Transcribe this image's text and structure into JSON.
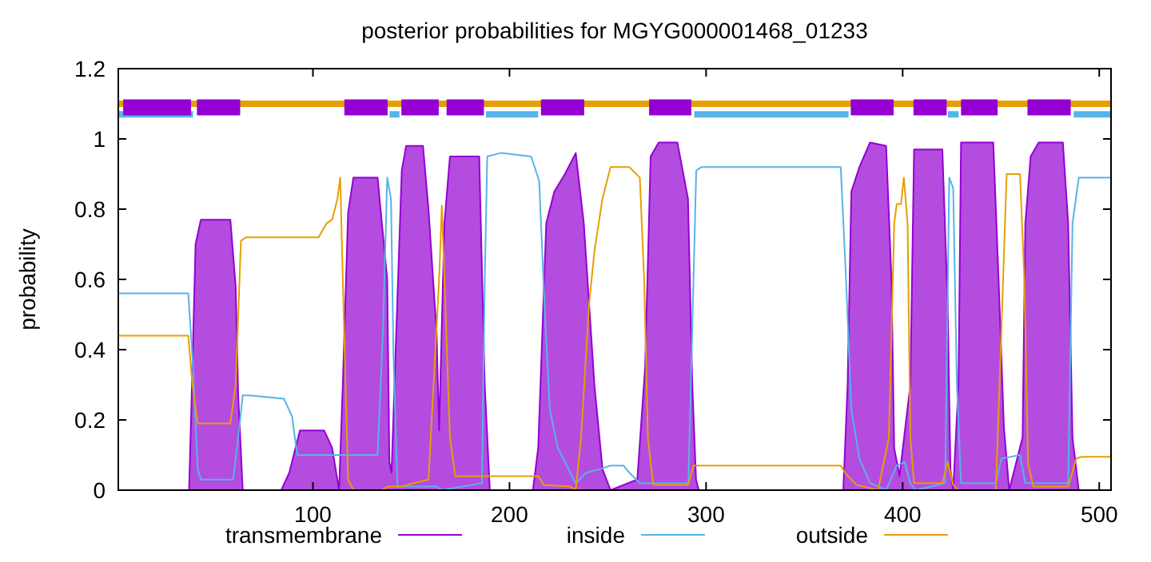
{
  "chart_data": {
    "type": "line",
    "title": "posterior probabilities for MGYG000001468_01233",
    "ylabel": "probability",
    "xlim": [
      1,
      506
    ],
    "ylim": [
      0,
      1.2
    ],
    "xticks": [
      100,
      200,
      300,
      400,
      500
    ],
    "yticks": [
      0,
      0.2,
      0.4,
      0.6,
      0.8,
      1,
      1.2
    ],
    "legend": "bottom",
    "grid": false,
    "line_style": "solid",
    "series": [
      {
        "name": "transmembrane",
        "type": "area",
        "color": "#9400d3",
        "x": [
          1,
          37,
          38.1,
          40.3,
          43,
          58,
          60.7,
          62,
          64.3,
          83.9,
          88,
          90.7,
          93.4,
          105.7,
          109.8,
          113.3,
          115.2,
          117.9,
          120.6,
          132.9,
          137.8,
          138.9,
          140,
          142.4,
          145.2,
          147.4,
          156,
          158.8,
          162.9,
          164.2,
          166.9,
          169.7,
          184.6,
          187.4,
          190,
          211.9,
          214.6,
          218.7,
          222.8,
          228.2,
          233.7,
          237.8,
          243.2,
          247.3,
          251.4,
          265,
          269,
          271.8,
          275.9,
          285.4,
          290.8,
          293,
          294.9,
          296.3,
          369.8,
          372,
          373.9,
          378,
          383.4,
          391.6,
          394.3,
          395.7,
          398.4,
          403.9,
          405.8,
          420.2,
          422.9,
          424.3,
          425.7,
          428.4,
          429.7,
          446.1,
          448.8,
          451.5,
          454.2,
          461,
          462.4,
          465.1,
          469.2,
          481.5,
          484.2,
          486.4,
          489.6,
          506
        ],
        "values": [
          0,
          0,
          0.22,
          0.7,
          0.77,
          0.77,
          0.58,
          0.27,
          0,
          0,
          0.05,
          0.11,
          0.17,
          0.17,
          0.12,
          0,
          0.3,
          0.79,
          0.89,
          0.89,
          0.6,
          0.08,
          0.05,
          0.45,
          0.91,
          0.98,
          0.98,
          0.8,
          0.45,
          0.17,
          0.76,
          0.95,
          0.95,
          0.3,
          0,
          0,
          0.12,
          0.76,
          0.85,
          0.9,
          0.96,
          0.76,
          0.3,
          0.06,
          0,
          0.03,
          0.35,
          0.95,
          0.99,
          0.99,
          0.83,
          0.3,
          0.03,
          0,
          0,
          0.3,
          0.85,
          0.92,
          0.99,
          0.98,
          0.6,
          0.12,
          0.04,
          0.3,
          0.97,
          0.97,
          0.53,
          0.06,
          0,
          0.3,
          0.99,
          0.99,
          0.6,
          0.18,
          0,
          0.15,
          0.76,
          0.95,
          0.99,
          0.99,
          0.76,
          0.15,
          0,
          0
        ]
      },
      {
        "name": "inside",
        "color": "#56b4e9",
        "x": [
          1,
          36.6,
          38.7,
          41.4,
          43,
          59.4,
          62,
          64.3,
          67.6,
          85.3,
          89.4,
          92,
          122.5,
          132.9,
          135.6,
          137.8,
          139.7,
          141,
          143,
          162.9,
          165.6,
          186,
          187.4,
          188.7,
          195.5,
          211,
          215.1,
          217.8,
          220.5,
          224.6,
          230,
          233.7,
          239.1,
          245.9,
          251.4,
          258,
          260.9,
          266.3,
          291,
          293.6,
          295,
          297.7,
          368.5,
          371.2,
          373.9,
          378,
          383.4,
          391.6,
          397,
          401,
          403.9,
          406.6,
          421.6,
          423.7,
          425.7,
          427.6,
          429.7,
          447.4,
          450.2,
          459.7,
          462.4,
          484.2,
          486.4,
          489.6,
          506
        ],
        "values": [
          0.56,
          0.56,
          0.38,
          0.06,
          0.03,
          0.03,
          0.15,
          0.27,
          0.27,
          0.26,
          0.21,
          0.1,
          0.1,
          0.1,
          0.45,
          0.89,
          0.83,
          0.38,
          0.01,
          0.01,
          0,
          0.02,
          0.6,
          0.95,
          0.96,
          0.95,
          0.88,
          0.53,
          0.23,
          0.12,
          0.06,
          0.02,
          0.05,
          0.06,
          0.07,
          0.07,
          0.05,
          0.02,
          0.02,
          0.6,
          0.91,
          0.92,
          0.92,
          0.6,
          0.23,
          0.09,
          0.02,
          0,
          0.07,
          0.08,
          0.02,
          0,
          0.02,
          0.89,
          0.86,
          0.3,
          0.02,
          0.02,
          0.09,
          0.1,
          0.02,
          0.02,
          0.76,
          0.89,
          0.89
        ]
      },
      {
        "name": "outside",
        "color": "#e69f00",
        "x": [
          1,
          36.6,
          38.7,
          41.4,
          58,
          60.7,
          63.4,
          66.1,
          102.9,
          107,
          109.8,
          112.5,
          113.9,
          115.2,
          117.9,
          120.6,
          135.1,
          137.8,
          144.6,
          158.8,
          164.2,
          165.6,
          166.9,
          169.7,
          172.4,
          214.6,
          217.4,
          231,
          233.7,
          236.4,
          240.5,
          243.2,
          247.3,
          251.4,
          252.7,
          260.9,
          266.3,
          268.5,
          270.4,
          273.1,
          290.8,
          293.6,
          368.5,
          371.2,
          376.6,
          387.5,
          393,
          395.7,
          397,
          399.2,
          400.6,
          402.5,
          403.9,
          405.8,
          420.2,
          422.9,
          425.7,
          428.4,
          447.4,
          450.2,
          452.9,
          459.7,
          461.9,
          463.8,
          466.5,
          484.2,
          488.3,
          491,
          506
        ],
        "values": [
          0.44,
          0.44,
          0.3,
          0.19,
          0.19,
          0.3,
          0.71,
          0.72,
          0.72,
          0.76,
          0.77,
          0.83,
          0.89,
          0.6,
          0.03,
          0,
          0,
          0.01,
          0.01,
          0.03,
          0.6,
          0.81,
          0.6,
          0.15,
          0.04,
          0.04,
          0.015,
          0.01,
          0,
          0.15,
          0.53,
          0.68,
          0.83,
          0.92,
          0.92,
          0.92,
          0.89,
          0.6,
          0.15,
          0.015,
          0.015,
          0.07,
          0.07,
          0.045,
          0.015,
          0,
          0.15,
          0.76,
          0.815,
          0.815,
          0.89,
          0.76,
          0.15,
          0.02,
          0.02,
          0.08,
          0.015,
          0,
          0,
          0.45,
          0.9,
          0.9,
          0.6,
          0.075,
          0.01,
          0.01,
          0.09,
          0.095,
          0.095
        ]
      },
      {
        "color": "#e69f00",
        "x": [
          1,
          506
        ],
        "values": [
          1.1,
          1.1
        ]
      },
      {
        "color": "#56b4e9",
        "x": [
          1,
          39,
          40,
          139,
          144,
          145,
          188,
          214.6,
          215,
          294,
          372.5,
          373,
          423,
          428.5,
          429,
          487,
          506
        ],
        "values": [
          1.07,
          1.07,
          null,
          1.07,
          1.07,
          null,
          1.07,
          1.07,
          null,
          1.07,
          1.07,
          null,
          1.07,
          1.07,
          null,
          1.07,
          1.07
        ]
      },
      {
        "color": "#9400d3",
        "x": [
          3.5,
          38,
          38.5,
          41,
          63,
          63.5,
          116,
          138,
          138.5,
          145,
          164,
          164.5,
          168,
          187,
          187.5,
          216,
          238,
          238.5,
          271,
          292.5,
          293,
          373.6,
          395.4,
          396,
          405.5,
          422.4,
          423,
          429.7,
          448.3,
          449,
          463.5,
          485.5
        ],
        "values": [
          1.09,
          1.09,
          null,
          1.09,
          1.09,
          null,
          1.09,
          1.09,
          null,
          1.09,
          1.09,
          null,
          1.09,
          1.09,
          null,
          1.09,
          1.09,
          null,
          1.09,
          1.09,
          null,
          1.09,
          1.09,
          null,
          1.09,
          1.09,
          null,
          1.09,
          1.09,
          null,
          1.09,
          1.09
        ]
      }
    ]
  }
}
